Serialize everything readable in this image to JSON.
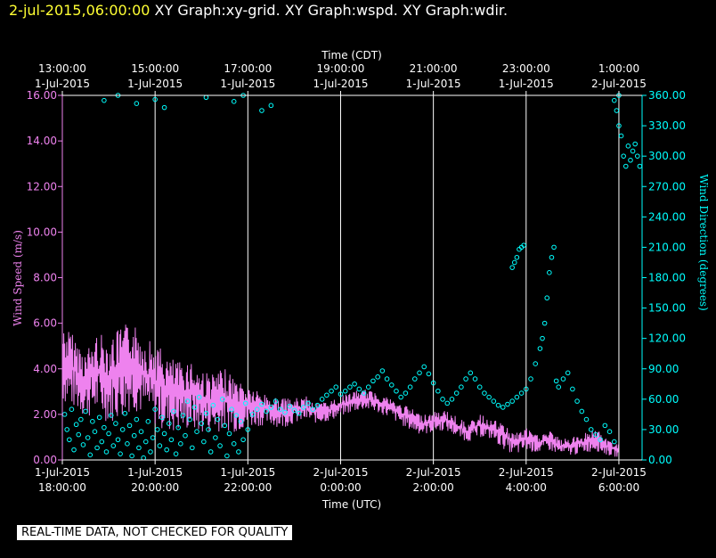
{
  "header": {
    "timestamp": "2-jul-2015,06:00:00",
    "graphs": "XY Graph:xy-grid.  XY Graph:wspd.  XY Graph:wdir."
  },
  "notice": "REAL-TIME DATA, NOT CHECKED FOR QUALITY",
  "colors": {
    "background": "#000000",
    "wind_speed": "#ee82ee",
    "wind_direction": "#00ffff",
    "grid": "#ffffff",
    "header_timestamp": "#ffff33"
  },
  "chart_data": {
    "type": "line",
    "grid": true,
    "x_axis_top": {
      "label": "Time (CDT)",
      "ticks": [
        [
          "13:00:00",
          "1-Jul-2015"
        ],
        [
          "15:00:00",
          "1-Jul-2015"
        ],
        [
          "17:00:00",
          "1-Jul-2015"
        ],
        [
          "19:00:00",
          "1-Jul-2015"
        ],
        [
          "21:00:00",
          "1-Jul-2015"
        ],
        [
          "23:00:00",
          "1-Jul-2015"
        ],
        [
          "1:00:00",
          "2-Jul-2015"
        ]
      ]
    },
    "x_axis_bottom": {
      "label": "Time (UTC)",
      "range_hours": [
        0,
        12.5
      ],
      "tick_hours": [
        0,
        2,
        4,
        6,
        8,
        10,
        12
      ],
      "ticks": [
        [
          "1-Jul-2015",
          "18:00:00"
        ],
        [
          "1-Jul-2015",
          "20:00:00"
        ],
        [
          "1-Jul-2015",
          "22:00:00"
        ],
        [
          "2-Jul-2015",
          "0:00:00"
        ],
        [
          "2-Jul-2015",
          "2:00:00"
        ],
        [
          "2-Jul-2015",
          "4:00:00"
        ],
        [
          "2-Jul-2015",
          "6:00:00"
        ]
      ]
    },
    "y_left": {
      "label": "Wind Speed (m/s)",
      "range": [
        0,
        16
      ],
      "ticks": [
        "0.00",
        "2.00",
        "4.00",
        "6.00",
        "8.00",
        "10.00",
        "12.00",
        "14.00",
        "16.00"
      ]
    },
    "y_right": {
      "label": "Wind Direction (degrees)",
      "range": [
        0,
        360
      ],
      "ticks": [
        "0.00",
        "30.00",
        "60.00",
        "90.00",
        "120.00",
        "150.00",
        "180.00",
        "210.00",
        "240.00",
        "270.00",
        "300.00",
        "330.00",
        "360.00"
      ]
    },
    "series": [
      {
        "name": "Wind Speed",
        "axis": "left",
        "style": "line",
        "x_unit": "hours since 1-Jul-2015 18:00 UTC",
        "x": [
          0,
          0.25,
          0.5,
          0.75,
          1,
          1.25,
          1.5,
          1.75,
          2,
          2.25,
          2.5,
          2.75,
          3,
          3.25,
          3.5,
          3.75,
          4,
          4.25,
          4.5,
          4.75,
          5,
          5.25,
          5.5,
          5.75,
          6,
          6.25,
          6.5,
          6.75,
          7,
          7.25,
          7.5,
          7.75,
          8,
          8.25,
          8.5,
          8.75,
          9,
          9.25,
          9.5,
          9.75,
          10,
          10.25,
          10.5,
          10.75,
          11,
          11.25,
          11.5,
          11.75,
          12
        ],
        "y": [
          4.2,
          3.8,
          3.4,
          4.0,
          3.7,
          4.2,
          4.5,
          3.9,
          3.6,
          3.2,
          2.9,
          3.1,
          2.7,
          2.5,
          2.6,
          2.4,
          2.3,
          2.2,
          2.1,
          2.0,
          2.1,
          2.2,
          2.0,
          2.1,
          2.3,
          2.5,
          2.6,
          2.5,
          2.3,
          2.0,
          1.8,
          1.5,
          1.6,
          1.7,
          1.4,
          1.2,
          1.5,
          1.3,
          1.0,
          0.6,
          0.9,
          0.7,
          0.8,
          0.5,
          0.6,
          0.7,
          0.9,
          0.5,
          0.4
        ],
        "range_low": [
          2.5,
          2.2,
          1.8,
          2.0,
          1.6,
          1.8,
          2.2,
          1.9,
          1.5,
          1.2,
          1.2,
          1.3,
          1.1,
          1.2,
          1.3,
          1.2,
          1.4,
          1.5,
          1.5,
          1.4,
          1.6,
          1.7,
          1.6,
          1.7,
          1.9,
          2.1,
          2.2,
          2.1,
          1.9,
          1.6,
          1.3,
          1.1,
          1.2,
          1.3,
          1.0,
          0.8,
          1.0,
          0.9,
          0.5,
          0.2,
          0.4,
          0.3,
          0.4,
          0.2,
          0.2,
          0.3,
          0.4,
          0.2,
          0.1
        ],
        "range_high": [
          6.0,
          5.5,
          4.8,
          5.6,
          5.4,
          5.8,
          6.1,
          5.5,
          5.2,
          4.6,
          4.3,
          4.5,
          4.0,
          3.8,
          4.0,
          3.6,
          3.3,
          3.0,
          2.8,
          2.7,
          2.7,
          2.8,
          2.5,
          2.6,
          2.8,
          3.0,
          3.1,
          3.0,
          2.8,
          2.5,
          2.3,
          2.0,
          2.1,
          2.2,
          1.9,
          1.6,
          2.0,
          1.8,
          1.6,
          1.2,
          1.4,
          1.1,
          1.3,
          0.9,
          1.0,
          1.2,
          1.4,
          0.9,
          0.7
        ]
      },
      {
        "name": "Wind Direction",
        "axis": "right",
        "style": "markers",
        "x_unit": "hours since 1-Jul-2015 18:00 UTC",
        "points": [
          [
            0.05,
            45
          ],
          [
            0.1,
            30
          ],
          [
            0.15,
            20
          ],
          [
            0.2,
            50
          ],
          [
            0.25,
            10
          ],
          [
            0.3,
            35
          ],
          [
            0.35,
            25
          ],
          [
            0.4,
            40
          ],
          [
            0.45,
            15
          ],
          [
            0.5,
            48
          ],
          [
            0.55,
            22
          ],
          [
            0.6,
            5
          ],
          [
            0.65,
            38
          ],
          [
            0.7,
            28
          ],
          [
            0.75,
            12
          ],
          [
            0.8,
            42
          ],
          [
            0.85,
            18
          ],
          [
            0.9,
            32
          ],
          [
            0.95,
            8
          ],
          [
            1.0,
            26
          ],
          [
            1.05,
            44
          ],
          [
            1.1,
            14
          ],
          [
            1.15,
            36
          ],
          [
            1.2,
            20
          ],
          [
            1.25,
            6
          ],
          [
            1.3,
            30
          ],
          [
            1.35,
            46
          ],
          [
            1.4,
            16
          ],
          [
            1.45,
            34
          ],
          [
            1.5,
            4
          ],
          [
            1.55,
            24
          ],
          [
            1.6,
            40
          ],
          [
            1.65,
            12
          ],
          [
            1.7,
            28
          ],
          [
            1.75,
            2
          ],
          [
            1.8,
            18
          ],
          [
            1.85,
            38
          ],
          [
            1.9,
            8
          ],
          [
            1.95,
            22
          ],
          [
            2.0,
            50
          ],
          [
            2.05,
            30
          ],
          [
            2.1,
            14
          ],
          [
            2.15,
            42
          ],
          [
            2.2,
            26
          ],
          [
            2.25,
            10
          ],
          [
            2.3,
            36
          ],
          [
            2.35,
            20
          ],
          [
            2.4,
            48
          ],
          [
            2.45,
            6
          ],
          [
            2.5,
            32
          ],
          [
            2.55,
            16
          ],
          [
            2.6,
            44
          ],
          [
            2.65,
            24
          ],
          [
            2.7,
            58
          ],
          [
            2.75,
            40
          ],
          [
            2.8,
            12
          ],
          [
            2.85,
            52
          ],
          [
            2.9,
            28
          ],
          [
            2.95,
            62
          ],
          [
            3.0,
            36
          ],
          [
            3.05,
            18
          ],
          [
            3.1,
            46
          ],
          [
            3.15,
            30
          ],
          [
            3.2,
            8
          ],
          [
            3.25,
            54
          ],
          [
            3.3,
            22
          ],
          [
            3.35,
            40
          ],
          [
            3.4,
            14
          ],
          [
            3.45,
            60
          ],
          [
            3.5,
            34
          ],
          [
            3.55,
            4
          ],
          [
            3.6,
            26
          ],
          [
            3.65,
            50
          ],
          [
            3.7,
            16
          ],
          [
            3.75,
            44
          ],
          [
            3.8,
            8
          ],
          [
            3.85,
            38
          ],
          [
            3.9,
            20
          ],
          [
            3.95,
            56
          ],
          [
            4.0,
            30
          ],
          [
            4.1,
            45
          ],
          [
            4.2,
            50
          ],
          [
            4.3,
            55
          ],
          [
            4.4,
            48
          ],
          [
            4.5,
            52
          ],
          [
            4.6,
            58
          ],
          [
            4.7,
            50
          ],
          [
            4.8,
            47
          ],
          [
            4.9,
            53
          ],
          [
            5.0,
            49
          ],
          [
            5.1,
            46
          ],
          [
            5.2,
            52
          ],
          [
            5.3,
            56
          ],
          [
            5.4,
            50
          ],
          [
            5.5,
            54
          ],
          [
            5.6,
            60
          ],
          [
            5.7,
            64
          ],
          [
            5.8,
            68
          ],
          [
            5.9,
            72
          ],
          [
            6.0,
            65
          ],
          [
            6.1,
            68
          ],
          [
            6.2,
            72
          ],
          [
            6.3,
            75
          ],
          [
            6.4,
            70
          ],
          [
            6.5,
            66
          ],
          [
            6.6,
            72
          ],
          [
            6.7,
            78
          ],
          [
            6.8,
            82
          ],
          [
            6.9,
            88
          ],
          [
            7.0,
            80
          ],
          [
            7.1,
            74
          ],
          [
            7.2,
            68
          ],
          [
            7.3,
            62
          ],
          [
            7.4,
            66
          ],
          [
            7.5,
            72
          ],
          [
            7.6,
            80
          ],
          [
            7.7,
            86
          ],
          [
            7.8,
            92
          ],
          [
            7.9,
            85
          ],
          [
            8.0,
            76
          ],
          [
            8.1,
            68
          ],
          [
            8.2,
            60
          ],
          [
            8.3,
            56
          ],
          [
            8.4,
            60
          ],
          [
            8.5,
            66
          ],
          [
            8.6,
            72
          ],
          [
            8.7,
            80
          ],
          [
            8.8,
            86
          ],
          [
            8.9,
            80
          ],
          [
            9.0,
            72
          ],
          [
            9.1,
            66
          ],
          [
            9.2,
            62
          ],
          [
            9.3,
            58
          ],
          [
            9.4,
            54
          ],
          [
            9.5,
            52
          ],
          [
            9.6,
            55
          ],
          [
            9.7,
            58
          ],
          [
            9.8,
            62
          ],
          [
            9.9,
            66
          ],
          [
            10.0,
            70
          ],
          [
            10.1,
            80
          ],
          [
            10.2,
            95
          ],
          [
            10.3,
            110
          ],
          [
            10.35,
            120
          ],
          [
            10.4,
            135
          ],
          [
            10.45,
            160
          ],
          [
            10.5,
            185
          ],
          [
            10.55,
            200
          ],
          [
            10.6,
            210
          ],
          [
            10.65,
            78
          ],
          [
            10.7,
            72
          ],
          [
            10.8,
            80
          ],
          [
            10.9,
            86
          ],
          [
            11.0,
            70
          ],
          [
            11.1,
            58
          ],
          [
            11.2,
            48
          ],
          [
            11.3,
            40
          ],
          [
            11.4,
            30
          ],
          [
            11.5,
            25
          ],
          [
            11.6,
            20
          ],
          [
            11.7,
            34
          ],
          [
            11.8,
            28
          ],
          [
            11.9,
            18
          ],
          [
            9.7,
            190
          ],
          [
            9.75,
            195
          ],
          [
            9.8,
            200
          ],
          [
            9.85,
            208
          ],
          [
            9.9,
            210
          ],
          [
            9.95,
            212
          ],
          [
            0.9,
            355
          ],
          [
            1.2,
            360
          ],
          [
            1.6,
            352
          ],
          [
            2.0,
            356
          ],
          [
            2.2,
            348
          ],
          [
            3.1,
            358
          ],
          [
            3.7,
            354
          ],
          [
            3.9,
            360
          ],
          [
            4.3,
            345
          ],
          [
            4.5,
            350
          ],
          [
            12.0,
            330
          ],
          [
            12.05,
            320
          ],
          [
            12.1,
            300
          ],
          [
            12.15,
            290
          ],
          [
            12.2,
            310
          ],
          [
            12.25,
            296
          ],
          [
            12.3,
            305
          ],
          [
            12.35,
            312
          ],
          [
            12.4,
            300
          ],
          [
            12.45,
            290
          ],
          [
            11.95,
            345
          ],
          [
            11.9,
            355
          ],
          [
            12.0,
            360
          ]
        ]
      }
    ]
  }
}
